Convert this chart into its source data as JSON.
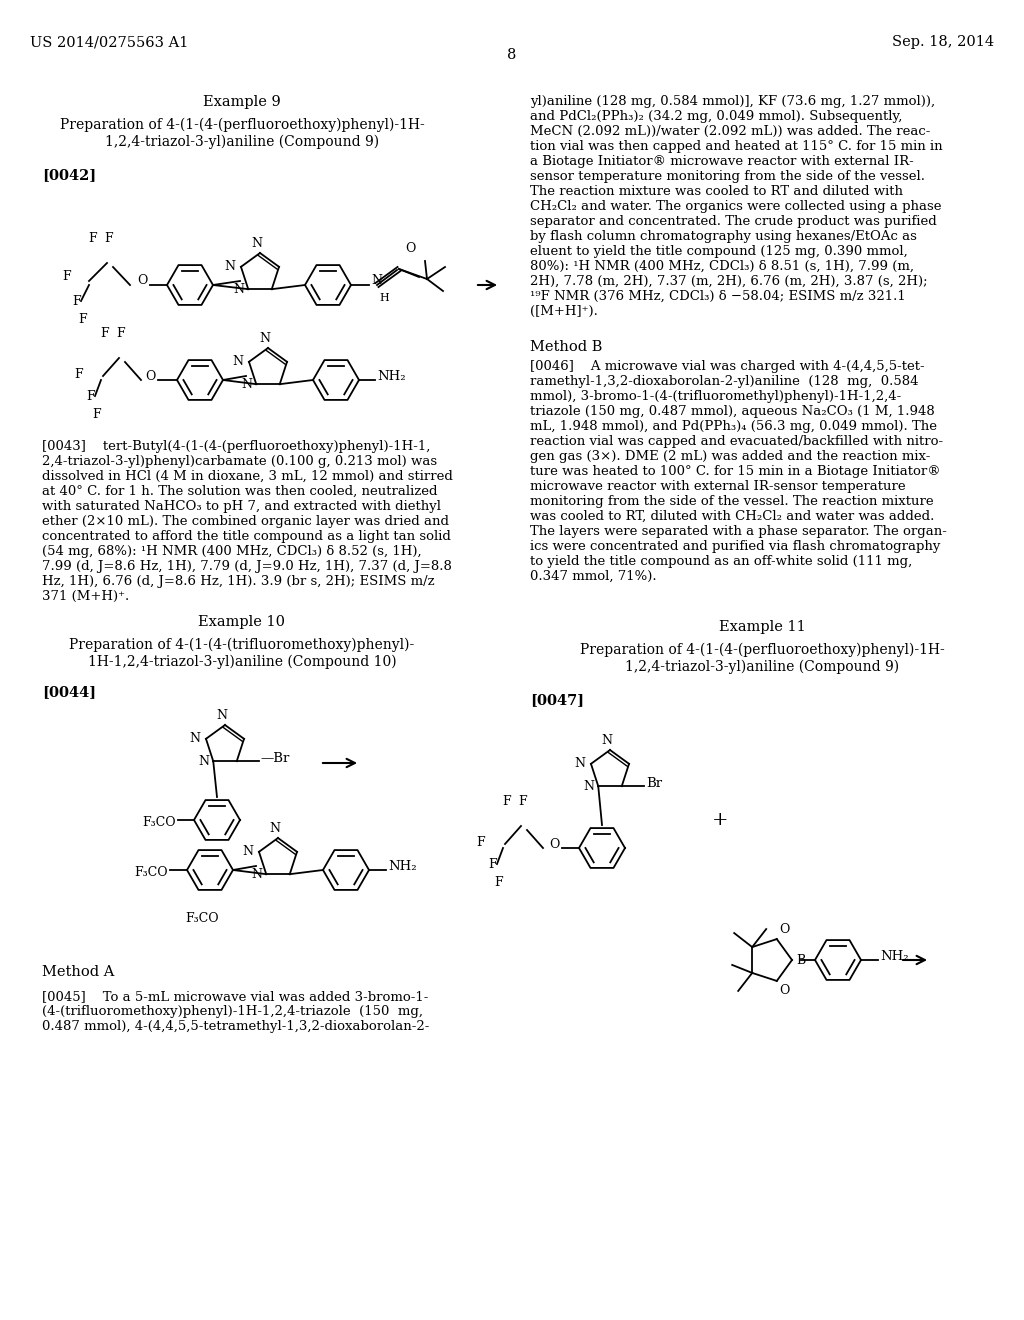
{
  "bg_color": "#ffffff",
  "header_left": "US 2014/0275563 A1",
  "header_right": "Sep. 18, 2014",
  "page_number": "8"
}
